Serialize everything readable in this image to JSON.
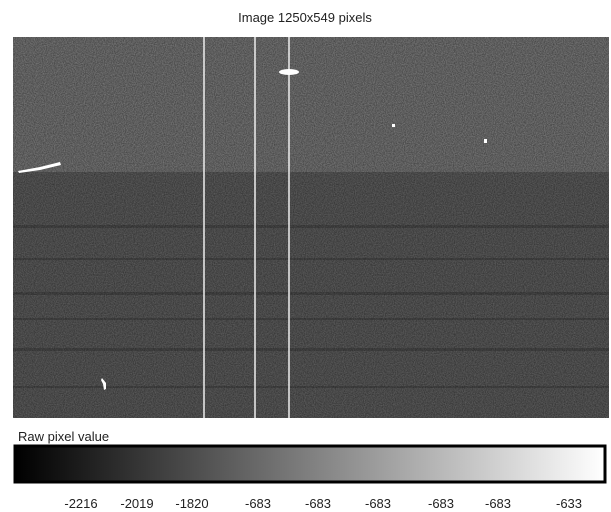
{
  "header": {
    "title": "Image 1250x549 pixels"
  },
  "colorbar": {
    "label": "Raw pixel value",
    "tick_labels": [
      "-2216",
      "-2019",
      "-1820",
      "-683",
      "-683",
      "-683",
      "-683",
      "-683",
      "-633"
    ]
  }
}
